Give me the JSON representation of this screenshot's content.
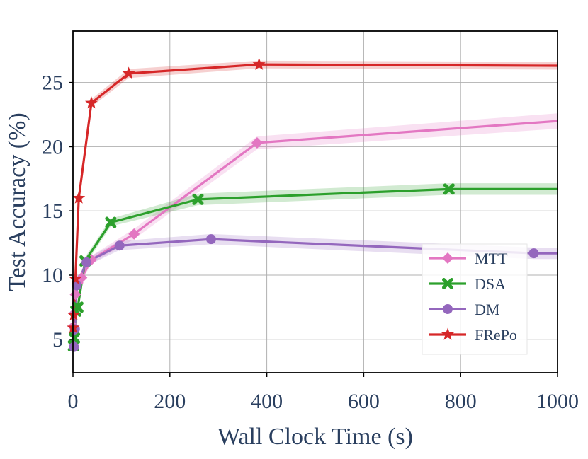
{
  "chart_data": {
    "type": "line",
    "xlabel": "Wall Clock Time (s)",
    "ylabel": "Test Accuracy (%)",
    "xlim": [
      0,
      1000
    ],
    "ylim": [
      2.4,
      29.0
    ],
    "xticks": [
      0,
      200,
      400,
      600,
      800,
      1000
    ],
    "yticks": [
      5,
      10,
      15,
      20,
      25
    ],
    "grid": true,
    "legend_position": "lower-right",
    "series": [
      {
        "name": "MTT",
        "color": "#e377c2",
        "marker": "diamond",
        "x": [
          0.5,
          2,
          5,
          10,
          18,
          38,
          126,
          380,
          1000
        ],
        "y": [
          6.0,
          7.0,
          8.5,
          9.4,
          9.8,
          11.2,
          13.2,
          20.3,
          22.0
        ],
        "band": [
          0.3,
          0.3,
          0.3,
          0.3,
          0.3,
          0.3,
          0.4,
          0.5,
          0.6
        ]
      },
      {
        "name": "DSA",
        "color": "#2ca02c",
        "marker": "x",
        "x": [
          1,
          3,
          6,
          10,
          25,
          78,
          258,
          776,
          1000
        ],
        "y": [
          4.5,
          5.1,
          7.2,
          7.5,
          11.1,
          14.1,
          15.9,
          16.7,
          16.7
        ],
        "band": [
          0.3,
          0.3,
          0.3,
          0.3,
          0.3,
          0.3,
          0.45,
          0.45,
          0.45
        ]
      },
      {
        "name": "DM",
        "color": "#9467bd",
        "marker": "circle",
        "x": [
          2,
          4,
          8,
          28,
          96,
          285,
          951,
          1000
        ],
        "y": [
          4.4,
          5.8,
          9.2,
          11.0,
          12.3,
          12.8,
          11.7,
          11.7
        ],
        "band": [
          0.3,
          0.3,
          0.3,
          0.3,
          0.35,
          0.4,
          0.45,
          0.45
        ]
      },
      {
        "name": "FRePo",
        "color": "#d62728",
        "marker": "star",
        "x": [
          0.5,
          1.5,
          5,
          12,
          38,
          115,
          384,
          1000
        ],
        "y": [
          5.9,
          6.9,
          9.7,
          16.0,
          23.4,
          25.7,
          26.4,
          26.3
        ],
        "band": [
          0.3,
          0.3,
          0.3,
          0.3,
          0.3,
          0.35,
          0.3,
          0.3
        ]
      }
    ]
  }
}
